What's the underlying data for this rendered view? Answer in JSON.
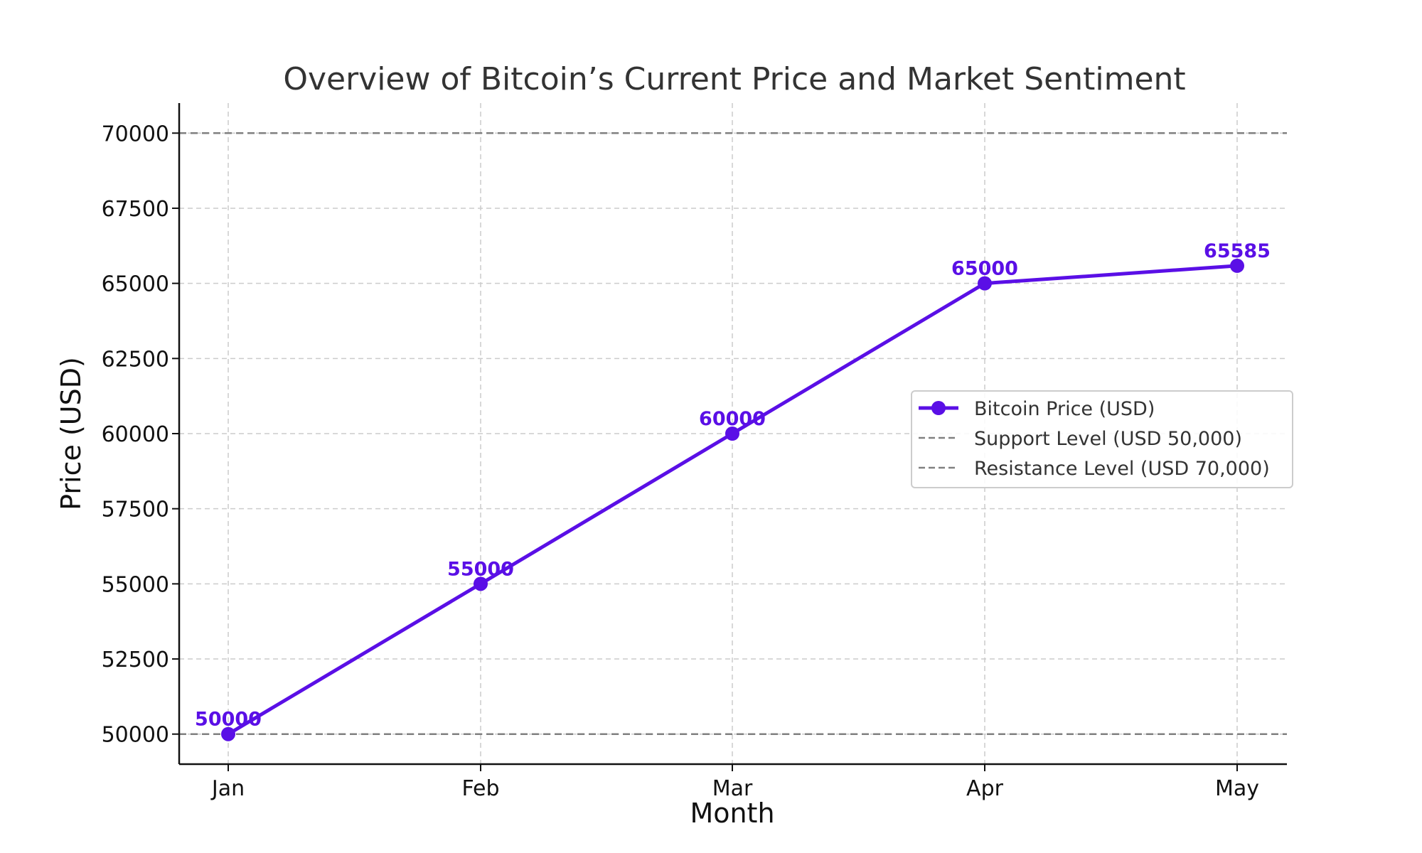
{
  "chart_data": {
    "type": "line",
    "title": "Overview of Bitcoin’s Current Price and Market Sentiment",
    "xlabel": "Month",
    "ylabel": "Price (USD)",
    "categories": [
      "Jan",
      "Feb",
      "Mar",
      "Apr",
      "May"
    ],
    "series": [
      {
        "name": "Bitcoin Price (USD)",
        "values": [
          50000,
          55000,
          60000,
          65000,
          65585
        ],
        "color": "#5a0fe6",
        "data_labels": [
          "50000",
          "55000",
          "60000",
          "65000",
          "65585"
        ]
      }
    ],
    "reference_lines": [
      {
        "name": "Support Level (USD 50,000)",
        "value": 50000,
        "color": "#808080",
        "style": "dashed"
      },
      {
        "name": "Resistance Level (USD 70,000)",
        "value": 70000,
        "color": "#808080",
        "style": "dashed"
      }
    ],
    "ylim": [
      49000,
      71000
    ],
    "yticks": [
      50000,
      52500,
      55000,
      57500,
      60000,
      62500,
      65000,
      67500,
      70000
    ],
    "grid": true,
    "legend_position": "center-right"
  }
}
